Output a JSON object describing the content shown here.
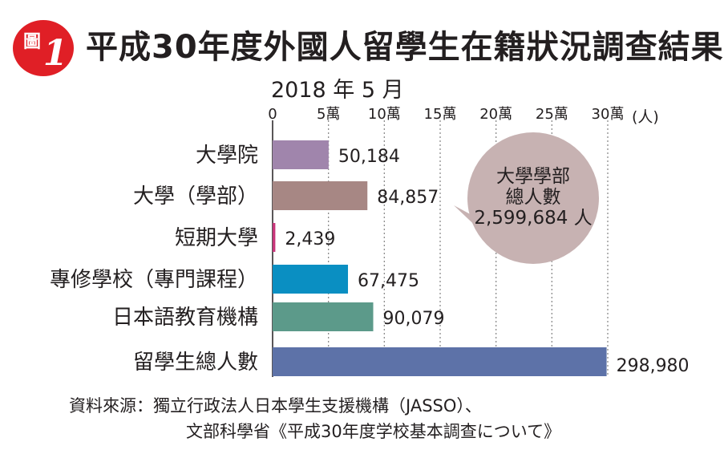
{
  "figure": {
    "badge_text": "圖",
    "badge_number": "1",
    "title": "平成30年度外國人留學生在籍狀況調查結果",
    "date": "2018 年 5 月"
  },
  "callout": {
    "line1": "大學學部",
    "line2": "總人數",
    "line3": "2,599,684 人"
  },
  "source": {
    "line1": "資料來源：獨立行政法人日本學生支援機構（JASSO）、",
    "line2": "文部科學省《平成30年度学校基本調查について》"
  },
  "colors": {
    "badge": "#e01f26",
    "grid": "#8c8c8c",
    "callout_fill": "#c7b2b2"
  },
  "chart_data": {
    "type": "bar",
    "orientation": "horizontal",
    "unit": "(人)",
    "xlim": [
      0,
      300000
    ],
    "ticks": [
      {
        "value": 0,
        "label": "0"
      },
      {
        "value": 50000,
        "label": "5萬"
      },
      {
        "value": 100000,
        "label": "10萬"
      },
      {
        "value": 150000,
        "label": "15萬"
      },
      {
        "value": 200000,
        "label": "20萬"
      },
      {
        "value": 250000,
        "label": "25萬"
      },
      {
        "value": 300000,
        "label": "30萬"
      }
    ],
    "grid": true,
    "categories": [
      "大學院",
      "大學（學部）",
      "短期大學",
      "專修學校（專門課程）",
      "日本語教育機構",
      "留學生總人數"
    ],
    "values": [
      50184,
      84857,
      2439,
      67475,
      90079,
      298980
    ],
    "value_labels": [
      "50,184",
      "84,857",
      "2,439",
      "67,475",
      "90,079",
      "298,980"
    ],
    "colors": [
      "#a085ac",
      "#a78784",
      "#c8367a",
      "#0a8fc2",
      "#5c9a8a",
      "#5d72a8"
    ]
  }
}
